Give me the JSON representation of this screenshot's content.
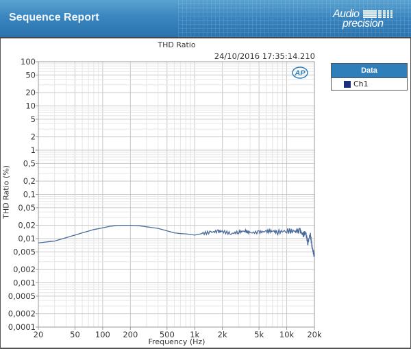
{
  "header": {
    "title": "Sequence Report",
    "brand_line1": "Audio",
    "brand_line2": "precision"
  },
  "chart": {
    "title": "THD Ratio",
    "timestamp": "24/10/2016 17:35:14.210",
    "watermark": "AP",
    "xlabel": "Frequency (Hz)",
    "ylabel": "THD Ratio (%)"
  },
  "legend": {
    "header": "Data",
    "items": [
      {
        "label": "Ch1",
        "color": "#1b2f7a"
      }
    ]
  },
  "colors": {
    "header_blue": "#3a86c0",
    "legend_header": "#2f7fbb",
    "series_line": "#4a6a99",
    "grid_major": "#c8c8c8",
    "grid_minor": "#e6e6e6"
  },
  "chart_data": {
    "type": "line",
    "title": "THD Ratio",
    "xlabel": "Frequency (Hz)",
    "ylabel": "THD Ratio (%)",
    "x_scale": "log",
    "y_scale": "log",
    "xlim": [
      20,
      20000
    ],
    "ylim": [
      0.0001,
      100
    ],
    "x_ticks": [
      "20",
      "50",
      "100",
      "200",
      "500",
      "1k",
      "2k",
      "5k",
      "10k",
      "20k"
    ],
    "y_ticks": [
      "100",
      "50",
      "20",
      "10",
      "5",
      "2",
      "1",
      "0,5",
      "0,2",
      "0,1",
      "0,05",
      "0,02",
      "0,01",
      "0,005",
      "0,002",
      "0,001",
      "0,0005",
      "0,0002",
      "0,0001"
    ],
    "grid": true,
    "legend_position": "right",
    "series": [
      {
        "name": "Ch1",
        "x": [
          20,
          30,
          40,
          50,
          60,
          80,
          100,
          120,
          150,
          200,
          250,
          300,
          400,
          500,
          600,
          700,
          800,
          1000,
          1200,
          1500,
          1800,
          2000,
          2500,
          3000,
          3500,
          4000,
          5000,
          6000,
          7000,
          8000,
          10000,
          12000,
          14000,
          15000,
          16000,
          17000,
          18000,
          19000,
          20000
        ],
        "values": [
          0.008,
          0.0088,
          0.0105,
          0.012,
          0.0135,
          0.016,
          0.0175,
          0.019,
          0.02,
          0.02,
          0.0195,
          0.0185,
          0.017,
          0.015,
          0.0135,
          0.013,
          0.0128,
          0.012,
          0.013,
          0.014,
          0.0145,
          0.0145,
          0.013,
          0.014,
          0.015,
          0.0135,
          0.014,
          0.0145,
          0.015,
          0.014,
          0.015,
          0.0145,
          0.015,
          0.012,
          0.014,
          0.008,
          0.013,
          0.006,
          0.004
        ]
      }
    ]
  }
}
